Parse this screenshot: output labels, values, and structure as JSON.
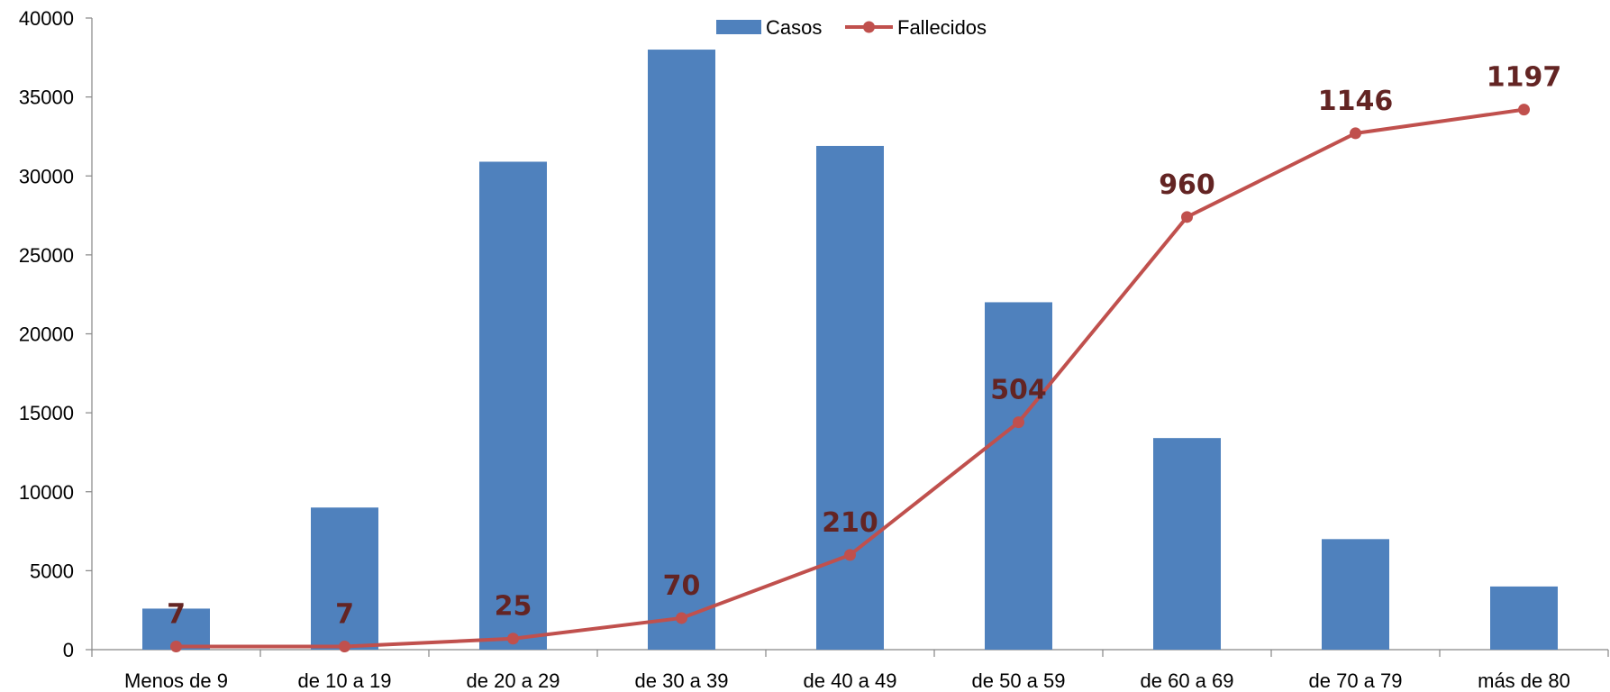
{
  "chart_data": {
    "type": "bar",
    "categories": [
      "Menos de 9",
      "de 10 a 19",
      "de 20 a 29",
      "de 30 a 39",
      "de 40 a 49",
      "de 50 a 59",
      "de 60 a 69",
      "de 70 a 79",
      "más de 80"
    ],
    "series": [
      {
        "name": "Casos",
        "type": "bar",
        "color": "#4F81BD",
        "values": [
          2600,
          9000,
          30900,
          38000,
          31900,
          22000,
          13400,
          7000,
          4000
        ]
      },
      {
        "name": "Fallecidos",
        "type": "line",
        "color": "#C0504D",
        "values": [
          7,
          7,
          25,
          70,
          210,
          504,
          960,
          1146,
          1197
        ],
        "labels": [
          "7",
          "7",
          "25",
          "70",
          "210",
          "504",
          "960",
          "1146",
          "1197"
        ],
        "plotted_on_left_axis": [
          200,
          200,
          700,
          2000,
          6000,
          14400,
          27400,
          32700,
          34200
        ]
      }
    ],
    "yaxis": {
      "ylim": [
        0,
        40000
      ],
      "ticks": [
        0,
        5000,
        10000,
        15000,
        20000,
        25000,
        30000,
        35000,
        40000
      ],
      "tick_labels": [
        "0",
        "5000",
        "10000",
        "15000",
        "20000",
        "25000",
        "30000",
        "35000",
        "40000"
      ]
    },
    "legend": {
      "position": "top-center",
      "entries": [
        "Casos",
        "Fallecidos"
      ]
    },
    "label_color": "#632423",
    "axis_color": "#868686",
    "grid": false
  }
}
